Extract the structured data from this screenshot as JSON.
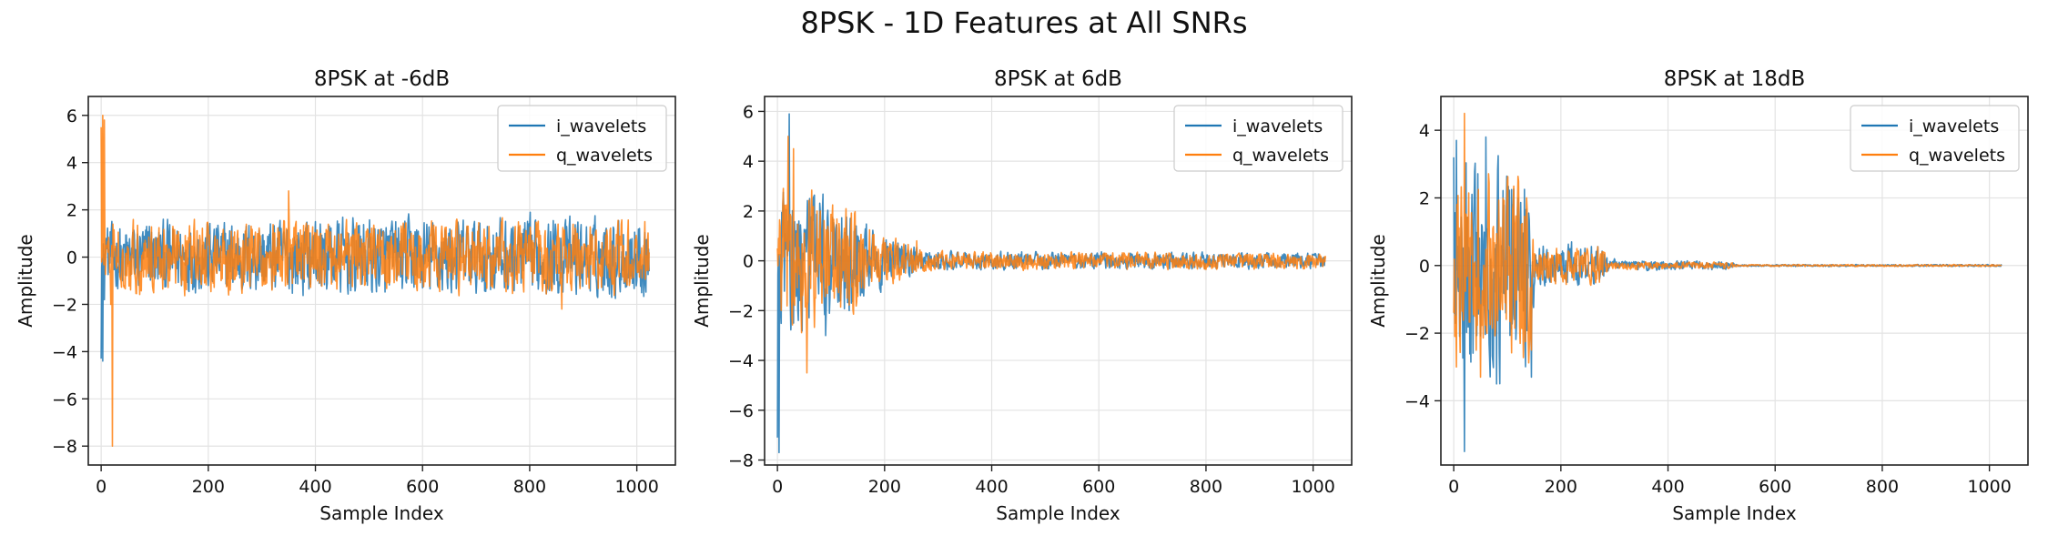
{
  "figure": {
    "suptitle": "8PSK - 1D Features at All SNRs"
  },
  "colors": {
    "i_wavelets": "#1f77b4",
    "q_wavelets": "#ff7f0e"
  },
  "chart_data": [
    {
      "type": "line",
      "title": "8PSK at -6dB",
      "xlabel": "Sample Index",
      "ylabel": "Amplitude",
      "xlim": [
        -24,
        1072
      ],
      "ylim": [
        -8.8,
        6.8
      ],
      "xticks": [
        0,
        200,
        400,
        600,
        800,
        1000
      ],
      "yticks": [
        -8,
        -6,
        -4,
        -2,
        0,
        2,
        4,
        6
      ],
      "grid": true,
      "legend": "upper right",
      "num_samples": 1024,
      "series": [
        {
          "name": "i_wavelets",
          "color": "#1f77b4",
          "keypoints": [
            [
              0,
              -4.3
            ],
            [
              3,
              -4.4
            ],
            [
              6,
              -1.8
            ],
            [
              10,
              0.8
            ],
            [
              40,
              -1.0
            ],
            [
              90,
              1.3
            ],
            [
              200,
              -1.2
            ],
            [
              400,
              1.5
            ],
            [
              600,
              -1.3
            ],
            [
              800,
              1.4
            ],
            [
              1000,
              -1.0
            ],
            [
              1023,
              -0.6
            ]
          ],
          "noise_envelope": [
            [
              0,
              0.2
            ],
            [
              10,
              0.9
            ],
            [
              60,
              1.0
            ],
            [
              500,
              1.1
            ],
            [
              1023,
              1.1
            ]
          ]
        },
        {
          "name": "q_wavelets",
          "color": "#ff7f0e",
          "keypoints": [
            [
              0,
              5.5
            ],
            [
              3,
              6.0
            ],
            [
              6,
              5.8
            ],
            [
              10,
              0.5
            ],
            [
              18,
              -2.0
            ],
            [
              21,
              -8.0
            ],
            [
              25,
              0.3
            ],
            [
              350,
              2.8
            ],
            [
              860,
              -2.2
            ],
            [
              1015,
              1.5
            ],
            [
              1023,
              0.2
            ]
          ],
          "noise_envelope": [
            [
              0,
              0.2
            ],
            [
              10,
              0.9
            ],
            [
              60,
              1.0
            ],
            [
              500,
              1.0
            ],
            [
              1023,
              1.0
            ]
          ]
        }
      ]
    },
    {
      "type": "line",
      "title": "8PSK at 6dB",
      "xlabel": "Sample Index",
      "ylabel": "Amplitude",
      "xlim": [
        -24,
        1072
      ],
      "ylim": [
        -8.2,
        6.6
      ],
      "xticks": [
        0,
        200,
        400,
        600,
        800,
        1000
      ],
      "yticks": [
        -8,
        -6,
        -4,
        -2,
        0,
        2,
        4,
        6
      ],
      "grid": true,
      "legend": "upper right",
      "num_samples": 1024,
      "series": [
        {
          "name": "i_wavelets",
          "color": "#1f77b4",
          "keypoints": [
            [
              0,
              -7.1
            ],
            [
              3,
              -7.7
            ],
            [
              6,
              -2.0
            ],
            [
              12,
              2.0
            ],
            [
              22,
              5.9
            ],
            [
              30,
              -2.5
            ],
            [
              60,
              2.5
            ],
            [
              90,
              -3.0
            ],
            [
              150,
              1.0
            ],
            [
              250,
              0.4
            ],
            [
              1023,
              0.1
            ]
          ],
          "noise_envelope": [
            [
              0,
              0.3
            ],
            [
              8,
              2.0
            ],
            [
              120,
              1.5
            ],
            [
              200,
              0.7
            ],
            [
              280,
              0.25
            ],
            [
              1023,
              0.2
            ]
          ]
        },
        {
          "name": "q_wavelets",
          "color": "#ff7f0e",
          "keypoints": [
            [
              0,
              0.5
            ],
            [
              20,
              5.0
            ],
            [
              30,
              4.5
            ],
            [
              55,
              -4.5
            ],
            [
              80,
              2.0
            ],
            [
              130,
              -1.5
            ],
            [
              260,
              0.8
            ],
            [
              1023,
              0.2
            ]
          ],
          "noise_envelope": [
            [
              0,
              0.5
            ],
            [
              8,
              2.0
            ],
            [
              120,
              1.5
            ],
            [
              200,
              0.7
            ],
            [
              280,
              0.25
            ],
            [
              1023,
              0.2
            ]
          ]
        }
      ]
    },
    {
      "type": "line",
      "title": "8PSK at 18dB",
      "xlabel": "Sample Index",
      "ylabel": "Amplitude",
      "xlim": [
        -24,
        1072
      ],
      "ylim": [
        -5.9,
        5.0
      ],
      "xticks": [
        0,
        200,
        400,
        600,
        800,
        1000
      ],
      "yticks": [
        -4,
        -2,
        0,
        2,
        4
      ],
      "grid": true,
      "legend": "upper right",
      "num_samples": 1024,
      "series": [
        {
          "name": "i_wavelets",
          "color": "#1f77b4",
          "keypoints": [
            [
              0,
              3.2
            ],
            [
              5,
              3.7
            ],
            [
              20,
              -5.5
            ],
            [
              60,
              3.8
            ],
            [
              80,
              -3.5
            ],
            [
              120,
              2.0
            ],
            [
              145,
              -3.3
            ],
            [
              160,
              0.5
            ],
            [
              220,
              0.7
            ],
            [
              300,
              0.2
            ],
            [
              500,
              0.1
            ],
            [
              1023,
              0.0
            ]
          ],
          "noise_envelope": [
            [
              0,
              2.0
            ],
            [
              145,
              2.2
            ],
            [
              150,
              0.4
            ],
            [
              280,
              0.4
            ],
            [
              290,
              0.1
            ],
            [
              520,
              0.08
            ],
            [
              530,
              0.02
            ],
            [
              1023,
              0.02
            ]
          ]
        },
        {
          "name": "q_wavelets",
          "color": "#ff7f0e",
          "keypoints": [
            [
              0,
              -1.4
            ],
            [
              5,
              -3.0
            ],
            [
              20,
              4.5
            ],
            [
              50,
              -3.3
            ],
            [
              100,
              2.5
            ],
            [
              145,
              -2.5
            ],
            [
              160,
              0.3
            ],
            [
              230,
              0.5
            ],
            [
              1023,
              0.0
            ]
          ],
          "noise_envelope": [
            [
              0,
              1.8
            ],
            [
              145,
              1.8
            ],
            [
              150,
              0.35
            ],
            [
              280,
              0.35
            ],
            [
              290,
              0.08
            ],
            [
              520,
              0.06
            ],
            [
              530,
              0.02
            ],
            [
              1023,
              0.02
            ]
          ]
        }
      ]
    }
  ]
}
